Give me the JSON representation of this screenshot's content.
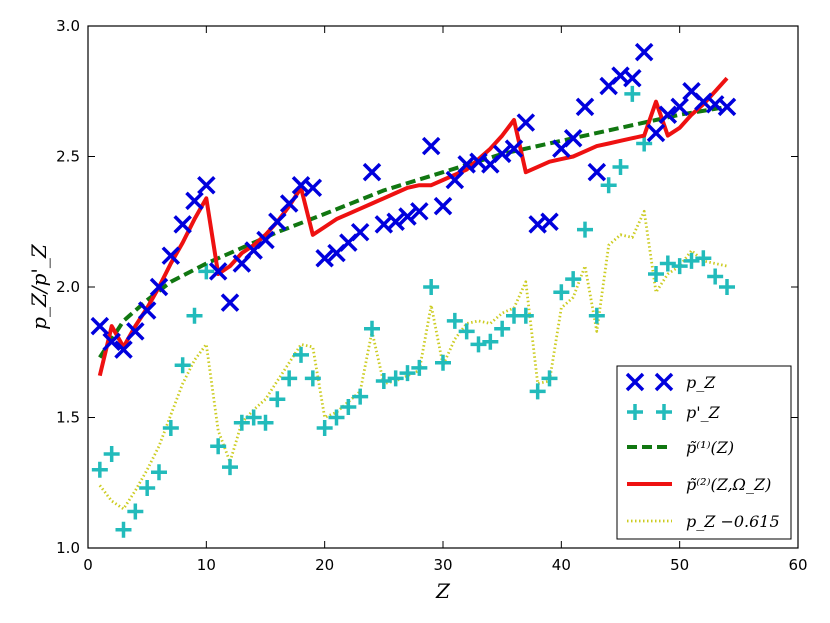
{
  "chart_data": {
    "type": "scatter",
    "xlabel": "Z",
    "ylabel": "p_Z/p'_Z",
    "xlim": [
      0,
      60
    ],
    "ylim": [
      1.0,
      3.0
    ],
    "xticks": [
      0,
      10,
      20,
      30,
      40,
      50,
      60
    ],
    "yticks": [
      1.0,
      1.5,
      2.0,
      2.5,
      3.0
    ],
    "xtick_labels": [
      "0",
      "10",
      "20",
      "30",
      "40",
      "50",
      "60"
    ],
    "ytick_labels": [
      "1.0",
      "1.5",
      "2.0",
      "2.5",
      "3.0"
    ],
    "grid": false,
    "legend_position": "bottom-right",
    "series": [
      {
        "name": "p_Z",
        "legend_label": "p_Z",
        "style": "x-marker",
        "color": "#0000dd",
        "x": [
          1,
          2,
          3,
          4,
          5,
          6,
          7,
          8,
          9,
          10,
          11,
          12,
          13,
          14,
          15,
          16,
          17,
          18,
          19,
          20,
          21,
          22,
          23,
          24,
          25,
          26,
          27,
          28,
          29,
          30,
          31,
          32,
          33,
          34,
          35,
          36,
          37,
          38,
          39,
          40,
          41,
          42,
          43,
          44,
          45,
          46,
          47,
          48,
          49,
          50,
          51,
          52,
          53,
          54
        ],
        "y": [
          1.85,
          1.79,
          1.76,
          1.83,
          1.91,
          2.0,
          2.12,
          2.24,
          2.33,
          2.39,
          2.06,
          1.94,
          2.09,
          2.14,
          2.18,
          2.25,
          2.32,
          2.39,
          2.38,
          2.11,
          2.13,
          2.17,
          2.21,
          2.44,
          2.24,
          2.25,
          2.27,
          2.29,
          2.54,
          2.31,
          2.41,
          2.47,
          2.48,
          2.47,
          2.51,
          2.53,
          2.63,
          2.24,
          2.25,
          2.53,
          2.57,
          2.69,
          2.44,
          2.77,
          2.81,
          2.8,
          2.9,
          2.59,
          2.66,
          2.69,
          2.75,
          2.71,
          2.7,
          2.69
        ]
      },
      {
        "name": "p'_Z",
        "legend_label": "p'_Z",
        "style": "plus-marker",
        "color": "#22bbbb",
        "x": [
          1,
          2,
          3,
          4,
          5,
          6,
          7,
          8,
          9,
          10,
          11,
          12,
          13,
          14,
          15,
          16,
          17,
          18,
          19,
          20,
          21,
          22,
          23,
          24,
          25,
          26,
          27,
          28,
          29,
          30,
          31,
          32,
          33,
          34,
          35,
          36,
          37,
          38,
          39,
          40,
          41,
          42,
          43,
          44,
          45,
          46,
          47,
          48,
          49,
          50,
          51,
          52,
          53,
          54
        ],
        "y": [
          1.3,
          1.36,
          1.07,
          1.14,
          1.23,
          1.29,
          1.46,
          1.7,
          1.89,
          2.06,
          1.39,
          1.31,
          1.48,
          1.5,
          1.48,
          1.57,
          1.65,
          1.74,
          1.65,
          1.46,
          1.5,
          1.54,
          1.58,
          1.84,
          1.64,
          1.65,
          1.67,
          1.69,
          2.0,
          1.71,
          1.87,
          1.83,
          1.78,
          1.79,
          1.84,
          1.89,
          1.89,
          1.6,
          1.65,
          1.98,
          2.03,
          2.22,
          1.89,
          2.39,
          2.46,
          2.74,
          2.55,
          2.05,
          2.09,
          2.08,
          2.1,
          2.11,
          2.04,
          2.0
        ]
      },
      {
        "name": "p~(1)(Z)",
        "legend_label": "p̃⁽¹⁾(Z)",
        "style": "dashed-line",
        "color": "#117711",
        "x": [
          1,
          3,
          5,
          7,
          10,
          13,
          16,
          20,
          25,
          30,
          35,
          40,
          45,
          50,
          54
        ],
        "y": [
          1.73,
          1.87,
          1.95,
          2.02,
          2.09,
          2.15,
          2.21,
          2.28,
          2.37,
          2.44,
          2.51,
          2.56,
          2.61,
          2.66,
          2.69
        ]
      },
      {
        "name": "p~(2)(Z,Omega_Z)",
        "legend_label": "p̃⁽²⁾(Z,Ω_Z)",
        "style": "solid-line",
        "color": "#ee1111",
        "x": [
          1,
          2,
          3,
          4,
          5,
          6,
          7,
          8,
          9,
          10,
          11,
          12,
          13,
          14,
          15,
          16,
          17,
          18,
          19,
          20,
          21,
          22,
          23,
          24,
          25,
          26,
          27,
          28,
          29,
          30,
          31,
          32,
          33,
          34,
          35,
          36,
          37,
          38,
          39,
          40,
          41,
          42,
          43,
          44,
          45,
          46,
          47,
          48,
          49,
          50,
          51,
          52,
          53,
          54
        ],
        "y": [
          1.66,
          1.85,
          1.77,
          1.85,
          1.92,
          2.0,
          2.09,
          2.17,
          2.26,
          2.34,
          2.05,
          2.08,
          2.13,
          2.16,
          2.2,
          2.25,
          2.31,
          2.38,
          2.2,
          2.23,
          2.26,
          2.28,
          2.3,
          2.32,
          2.34,
          2.36,
          2.38,
          2.39,
          2.39,
          2.41,
          2.43,
          2.45,
          2.49,
          2.53,
          2.58,
          2.64,
          2.44,
          2.46,
          2.48,
          2.49,
          2.5,
          2.52,
          2.54,
          2.55,
          2.56,
          2.57,
          2.58,
          2.71,
          2.58,
          2.61,
          2.66,
          2.7,
          2.75,
          2.8
        ]
      },
      {
        "name": "p_Z - 0.615",
        "legend_label": "p_Z −0.615",
        "style": "dotted-line",
        "color": "#cccc22",
        "x": [
          1,
          2,
          3,
          4,
          5,
          6,
          7,
          8,
          9,
          10,
          11,
          12,
          13,
          14,
          15,
          16,
          17,
          18,
          19,
          20,
          21,
          22,
          23,
          24,
          25,
          26,
          27,
          28,
          29,
          30,
          31,
          32,
          33,
          34,
          35,
          36,
          37,
          38,
          39,
          40,
          41,
          42,
          43,
          44,
          45,
          46,
          47,
          48,
          49,
          50,
          51,
          52,
          53,
          54
        ],
        "y": [
          1.24,
          1.18,
          1.15,
          1.22,
          1.3,
          1.39,
          1.51,
          1.63,
          1.72,
          1.78,
          1.45,
          1.33,
          1.48,
          1.53,
          1.57,
          1.64,
          1.71,
          1.78,
          1.77,
          1.5,
          1.52,
          1.56,
          1.6,
          1.83,
          1.63,
          1.64,
          1.66,
          1.68,
          1.93,
          1.7,
          1.8,
          1.86,
          1.87,
          1.86,
          1.9,
          1.92,
          2.02,
          1.63,
          1.64,
          1.92,
          1.96,
          2.08,
          1.83,
          2.16,
          2.2,
          2.19,
          2.29,
          1.98,
          2.05,
          2.08,
          2.14,
          2.1,
          2.09,
          2.08
        ]
      }
    ]
  }
}
